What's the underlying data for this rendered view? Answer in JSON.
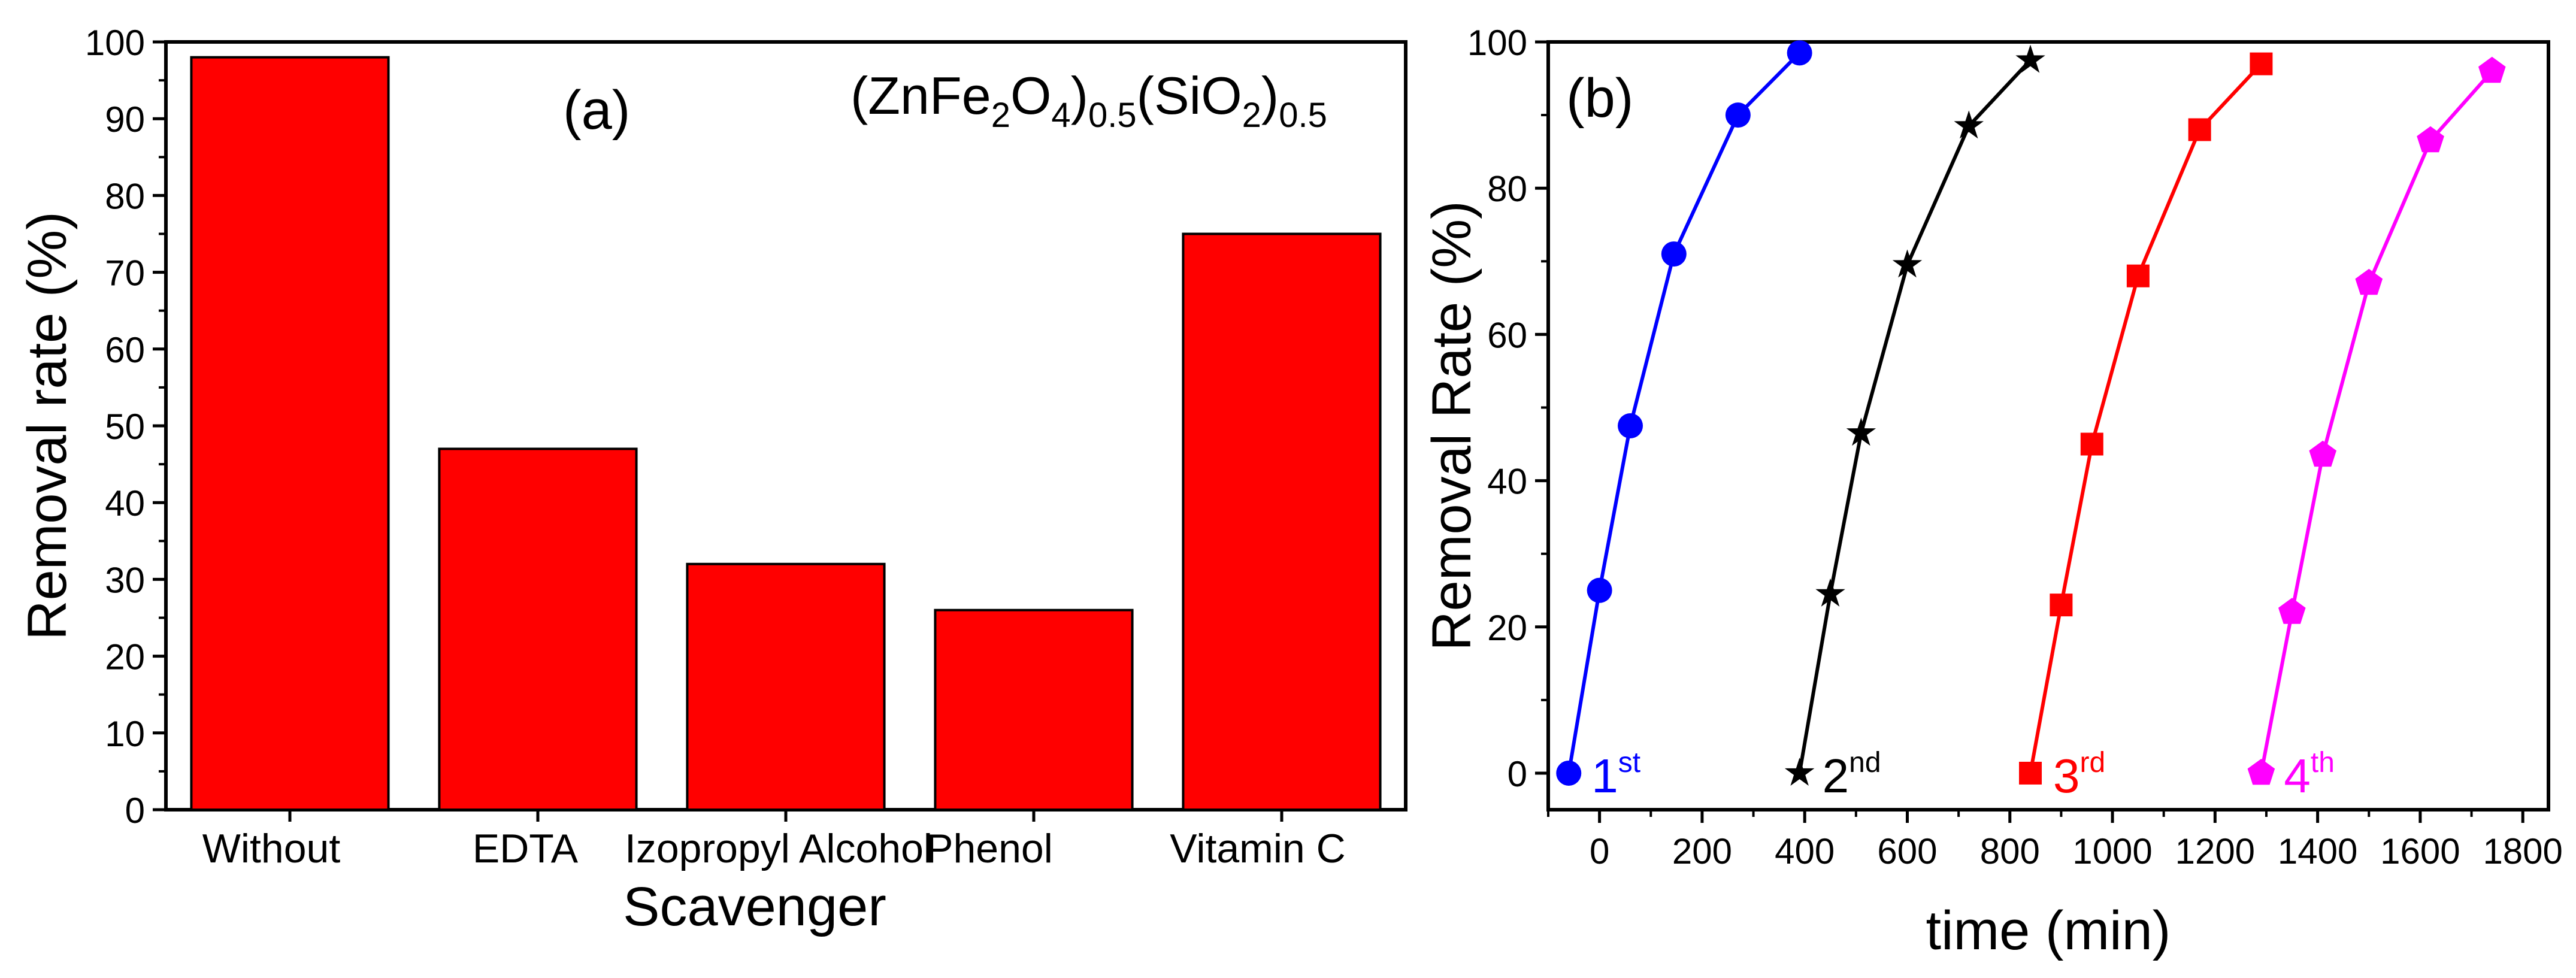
{
  "chart_data": [
    {
      "panel_label": "(a)",
      "type": "bar",
      "title": "",
      "annotation": {
        "base": "(ZnFe",
        "s1": "2",
        "mid1": "O",
        "s2": "4",
        "close1": ")",
        "s3": "0.5",
        "mid2": "(SiO",
        "s4": "2",
        "close2": ")",
        "s5": "0.5"
      },
      "xlabel": "Scavenger",
      "ylabel": "Removal rate  (%)",
      "categories": [
        "Without",
        "EDTA",
        "Izopropyl Alcohol",
        "Phenol",
        "Vitamin C"
      ],
      "values": [
        98,
        47,
        32,
        26,
        75
      ],
      "ylim": [
        0,
        100
      ],
      "yticks": [
        0,
        10,
        20,
        30,
        40,
        50,
        60,
        70,
        80,
        90,
        100
      ],
      "bar_color": "#ff0000",
      "grid": false
    },
    {
      "panel_label": "(b)",
      "type": "line",
      "title": "",
      "xlabel": "time  (min)",
      "ylabel": "Removal Rate  (%)",
      "xlim": [
        -100,
        1850
      ],
      "ylim": [
        -5,
        100
      ],
      "xticks": [
        0,
        200,
        400,
        600,
        800,
        1000,
        1200,
        1400,
        1600,
        1800
      ],
      "yticks": [
        0,
        20,
        40,
        60,
        80,
        100
      ],
      "grid": false,
      "series": [
        {
          "name": "1st",
          "label_main": "1",
          "label_sup": "st",
          "color": "#0000ff",
          "marker": "circle",
          "x": [
            -60,
            0,
            60,
            145,
            270,
            390
          ],
          "y": [
            0,
            25,
            47.5,
            71,
            90,
            98.5
          ]
        },
        {
          "name": "2nd",
          "label_main": "2",
          "label_sup": "nd",
          "color": "#000000",
          "marker": "star",
          "x": [
            390,
            450,
            510,
            600,
            720,
            840
          ],
          "y": [
            0,
            24.5,
            46.5,
            69.5,
            88.5,
            97.5
          ]
        },
        {
          "name": "3rd",
          "label_main": "3",
          "label_sup": "rd",
          "color": "#ff0000",
          "marker": "square",
          "x": [
            840,
            900,
            960,
            1050,
            1170,
            1290
          ],
          "y": [
            0,
            23,
            45,
            68,
            88,
            97
          ]
        },
        {
          "name": "4th",
          "label_main": "4",
          "label_sup": "th",
          "color": "#ff00ff",
          "marker": "pentagon",
          "x": [
            1290,
            1350,
            1410,
            1500,
            1620,
            1740
          ],
          "y": [
            0,
            22,
            43.5,
            67,
            86.5,
            96
          ]
        }
      ]
    }
  ]
}
